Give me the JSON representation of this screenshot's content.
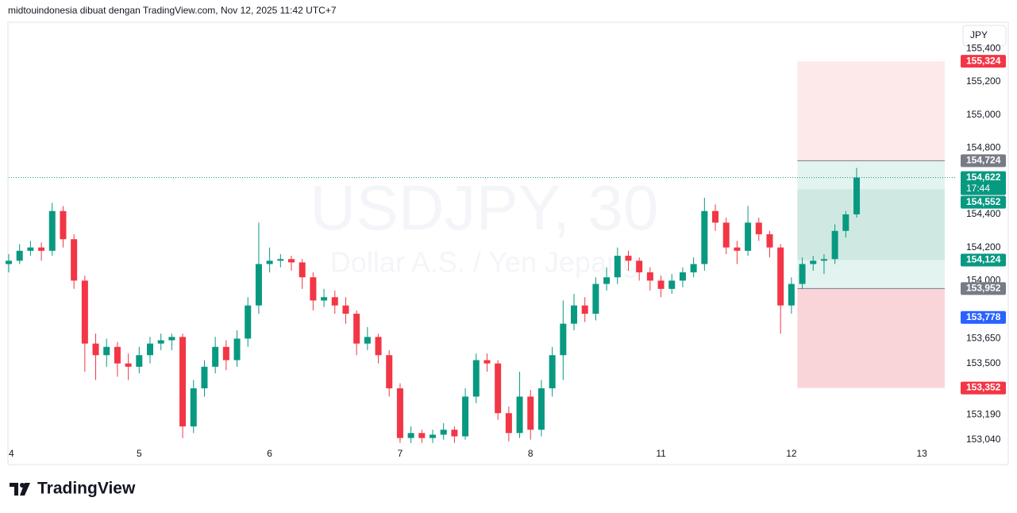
{
  "chart_data": {
    "type": "candlestick",
    "header": "midtouindonesia dibuat dengan TradingView.com, Nov 12, 2025 11:42 UTC+7",
    "symbol": "USDJPY, 30",
    "description": "Dollar A.S. / Yen Jepang",
    "currency": "JPY",
    "brand": "TradingView",
    "x": [
      0,
      1,
      2,
      3,
      4,
      5,
      6,
      7,
      8,
      9,
      10,
      11,
      12,
      13,
      14,
      15,
      16,
      17,
      18,
      19,
      20,
      21,
      22,
      23,
      24,
      25,
      26,
      27,
      28,
      29,
      30,
      31,
      32,
      33,
      34,
      35,
      36,
      37,
      38,
      39,
      40,
      41,
      42,
      43,
      44,
      45,
      46,
      47,
      48,
      49,
      50,
      51,
      52,
      53,
      54,
      55,
      56,
      57,
      58,
      59,
      60,
      61,
      62,
      63,
      64,
      65,
      66,
      67,
      68,
      69,
      70,
      71,
      72,
      73,
      74,
      75,
      76,
      77,
      78
    ],
    "open": [
      154.1,
      154.12,
      154.18,
      154.2,
      154.18,
      154.42,
      154.25,
      154.0,
      153.62,
      153.55,
      153.6,
      153.5,
      153.48,
      153.55,
      153.62,
      153.64,
      153.66,
      153.12,
      153.35,
      153.48,
      153.6,
      153.52,
      153.65,
      153.85,
      154.1,
      154.12,
      154.13,
      154.11,
      154.02,
      153.88,
      153.9,
      153.85,
      153.8,
      153.62,
      153.66,
      153.55,
      153.35,
      153.05,
      153.08,
      153.05,
      153.07,
      153.1,
      153.06,
      153.3,
      153.52,
      153.5,
      153.2,
      153.08,
      153.3,
      153.1,
      153.35,
      153.55,
      153.74,
      153.85,
      153.8,
      153.98,
      154.02,
      154.15,
      154.12,
      154.05,
      154.0,
      153.95,
      154.0,
      154.05,
      154.1,
      154.42,
      154.35,
      154.2,
      154.18,
      154.35,
      154.28,
      154.2,
      153.85,
      153.98,
      154.1,
      154.12,
      154.13,
      154.3,
      154.4
    ],
    "high": [
      154.16,
      154.22,
      154.24,
      154.23,
      154.47,
      154.45,
      154.28,
      154.03,
      153.68,
      153.65,
      153.63,
      153.56,
      153.6,
      153.66,
      153.68,
      153.68,
      153.68,
      153.4,
      153.52,
      153.66,
      153.64,
      153.7,
      153.9,
      154.35,
      154.2,
      154.16,
      154.15,
      154.13,
      154.05,
      153.95,
      153.94,
      153.9,
      153.82,
      153.72,
      153.68,
      153.58,
      153.38,
      153.12,
      153.1,
      153.1,
      153.14,
      153.12,
      153.35,
      153.56,
      153.56,
      153.52,
      153.24,
      153.45,
      153.34,
      153.4,
      153.6,
      153.88,
      153.92,
      153.9,
      154.02,
      154.08,
      154.2,
      154.18,
      154.14,
      154.08,
      154.03,
      154.04,
      154.08,
      154.14,
      154.5,
      154.46,
      154.38,
      154.24,
      154.45,
      154.38,
      154.3,
      154.22,
      154.02,
      154.14,
      154.15,
      154.16,
      154.34,
      154.42,
      154.68
    ],
    "low": [
      154.05,
      154.1,
      154.15,
      154.12,
      154.15,
      154.2,
      153.95,
      153.45,
      153.4,
      153.48,
      153.42,
      153.4,
      153.44,
      153.5,
      153.58,
      153.58,
      153.05,
      153.08,
      153.3,
      153.44,
      153.46,
      153.48,
      153.6,
      153.8,
      154.05,
      154.08,
      154.06,
      153.95,
      153.82,
      153.84,
      153.8,
      153.74,
      153.55,
      153.58,
      153.5,
      153.3,
      153.02,
      153.02,
      153.02,
      153.02,
      153.04,
      153.02,
      153.04,
      153.26,
      153.45,
      153.16,
      153.03,
      153.05,
      153.04,
      153.06,
      153.3,
      153.4,
      153.7,
      153.75,
      153.76,
      153.94,
      153.98,
      154.06,
      154.0,
      153.94,
      153.9,
      153.92,
      153.96,
      154.02,
      154.06,
      154.3,
      154.16,
      154.1,
      154.15,
      154.24,
      154.14,
      153.68,
      153.8,
      153.95,
      154.06,
      154.04,
      154.1,
      154.26,
      154.38
    ],
    "close": [
      154.12,
      154.18,
      154.2,
      154.18,
      154.42,
      154.25,
      154.0,
      153.62,
      153.55,
      153.6,
      153.5,
      153.48,
      153.55,
      153.62,
      153.64,
      153.66,
      153.12,
      153.35,
      153.48,
      153.6,
      153.52,
      153.65,
      153.85,
      154.1,
      154.12,
      154.13,
      154.11,
      154.02,
      153.88,
      153.9,
      153.85,
      153.8,
      153.62,
      153.66,
      153.55,
      153.35,
      153.05,
      153.08,
      153.05,
      153.07,
      153.1,
      153.06,
      153.3,
      153.52,
      153.5,
      153.2,
      153.08,
      153.3,
      153.1,
      153.35,
      153.55,
      153.74,
      153.85,
      153.8,
      153.98,
      154.02,
      154.15,
      154.12,
      154.05,
      154.0,
      153.95,
      154.0,
      154.05,
      154.1,
      154.42,
      154.35,
      154.2,
      154.18,
      154.35,
      154.28,
      154.2,
      153.85,
      153.98,
      154.1,
      154.12,
      154.13,
      154.3,
      154.4,
      154.622
    ],
    "up_color": "#089981",
    "down_color": "#f23645",
    "xlim": [
      0,
      87.2
    ],
    "xticks": [
      {
        "value": 0,
        "label": "4"
      },
      {
        "value": 12,
        "label": "5"
      },
      {
        "value": 24,
        "label": "6"
      },
      {
        "value": 36,
        "label": "7"
      },
      {
        "value": 48,
        "label": "8"
      },
      {
        "value": 60,
        "label": "11"
      },
      {
        "value": 72,
        "label": "12"
      },
      {
        "value": 84,
        "label": "13"
      }
    ],
    "ylim": [
      153.0,
      155.55
    ],
    "yticks": [
      {
        "value": 155.4,
        "label": "155,400"
      },
      {
        "value": 155.2,
        "label": "155,200"
      },
      {
        "value": 155.0,
        "label": "155,000"
      },
      {
        "value": 154.8,
        "label": "154,800"
      },
      {
        "value": 154.4,
        "label": "154,400"
      },
      {
        "value": 154.2,
        "label": "154,200"
      },
      {
        "value": 154.0,
        "label": "154,000"
      },
      {
        "value": 153.65,
        "label": "153,650"
      },
      {
        "value": 153.5,
        "label": "153,500"
      },
      {
        "value": 153.19,
        "label": "153,190"
      },
      {
        "value": 153.04,
        "label": "153,040"
      }
    ],
    "position_x": [
      72.55,
      86.1
    ],
    "zone_colors": [
      "#fde8ea",
      "#e3f3ef",
      "#cfe9e2",
      "#f9d5da"
    ],
    "price_labels": [
      {
        "value": 155.324,
        "label": "155,324",
        "color": "#f23645"
      },
      {
        "value": 154.724,
        "label": "154,724",
        "color": "#787b86"
      },
      {
        "value": 154.622,
        "label": "154,622",
        "color": "#089981"
      },
      {
        "value": 154.552,
        "label": "154,552",
        "color": "#089981"
      },
      {
        "value": 154.124,
        "label": "154,124",
        "color": "#089981"
      },
      {
        "value": 153.952,
        "label": "153,952",
        "color": "#787b86"
      },
      {
        "value": 153.778,
        "label": "153,778",
        "color": "#2962ff"
      },
      {
        "value": 153.352,
        "label": "153,352",
        "color": "#f23645"
      }
    ],
    "countdown": "17:44"
  }
}
